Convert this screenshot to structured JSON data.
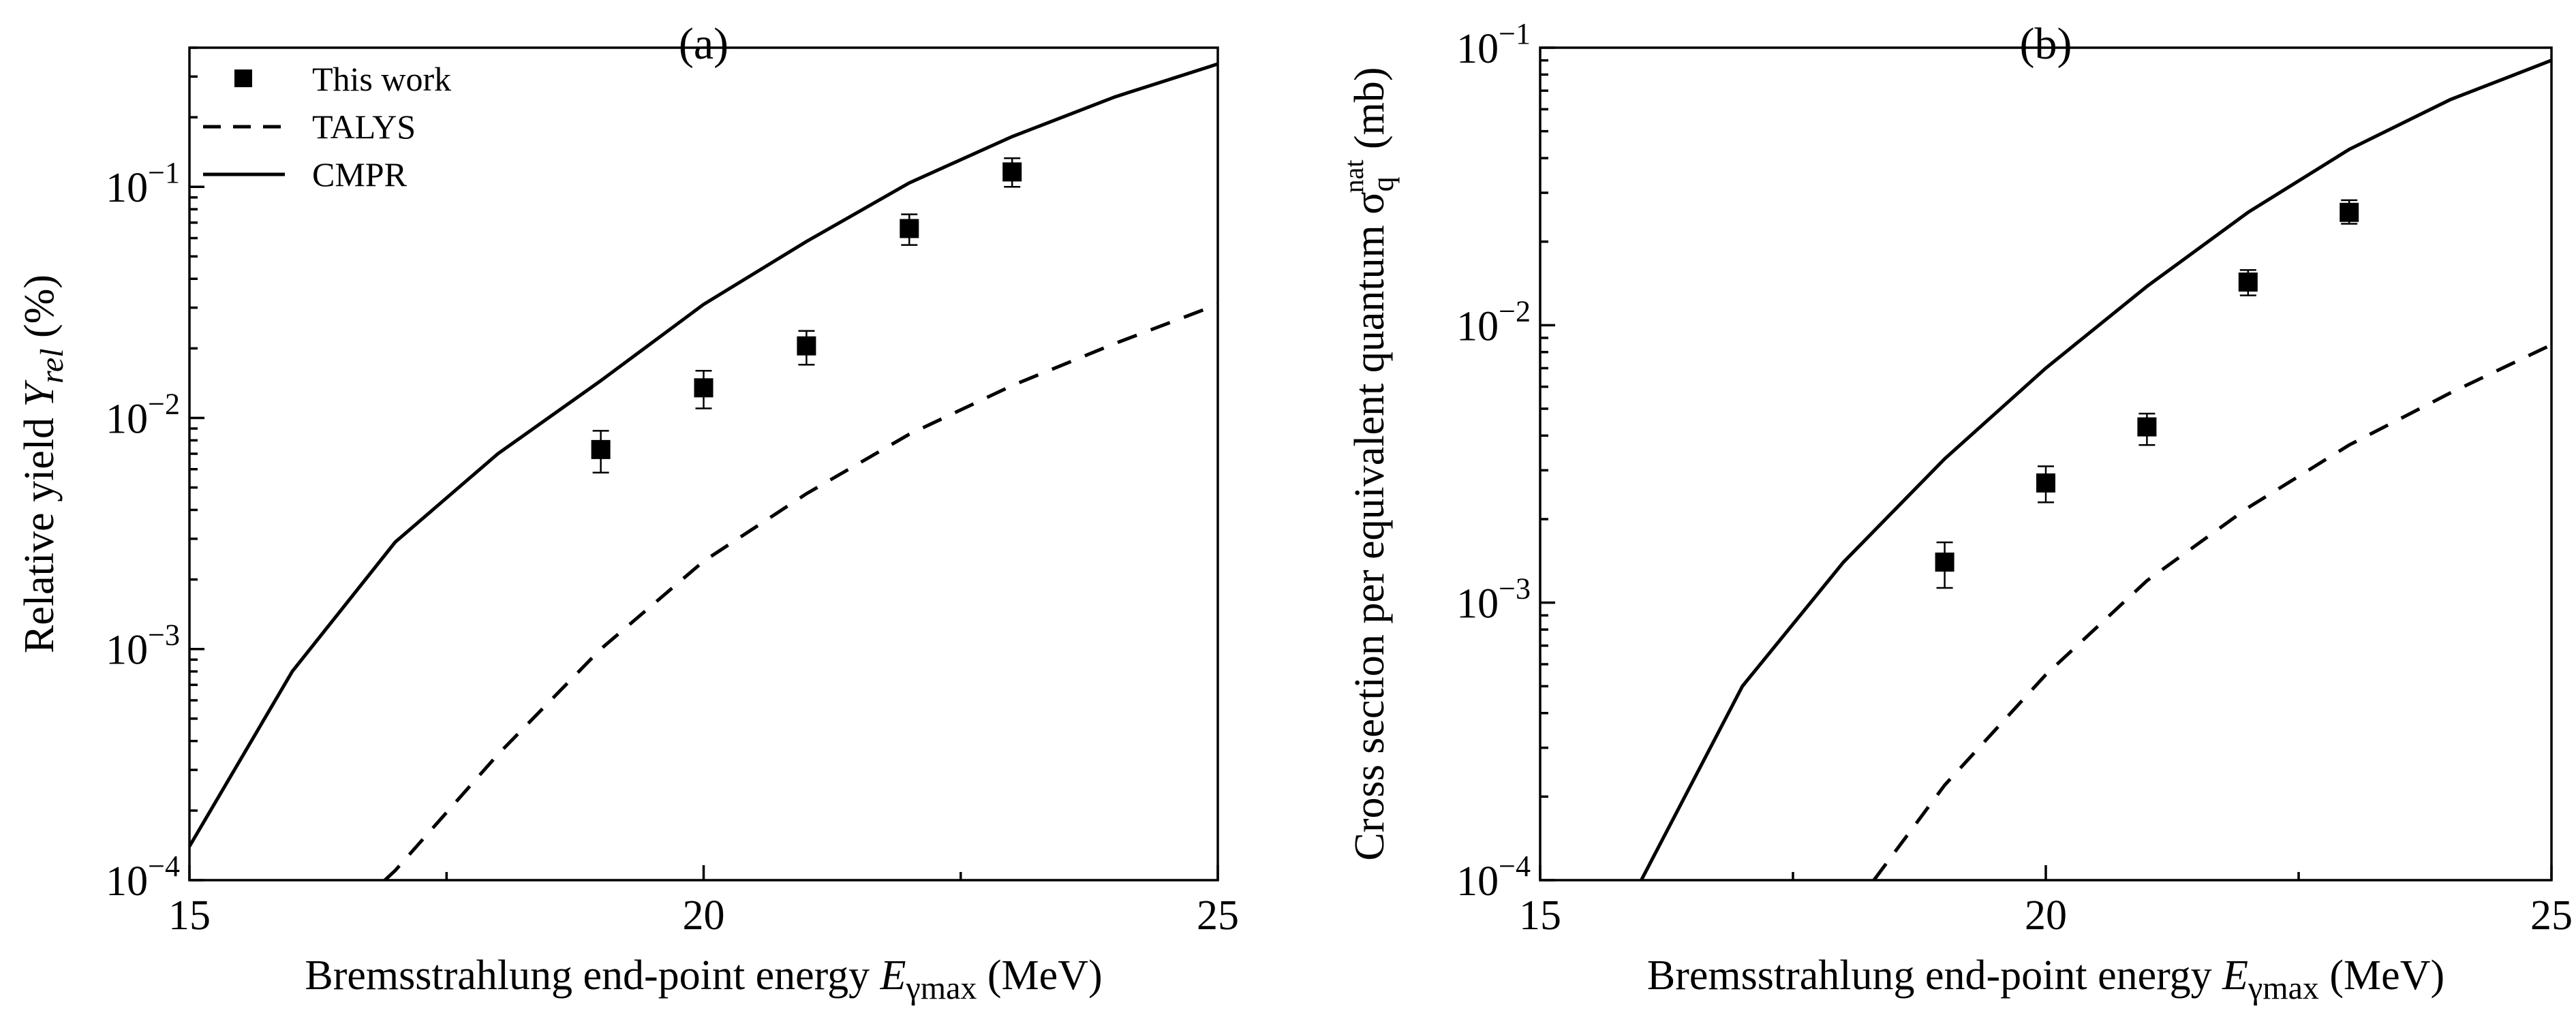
{
  "chart_data": [
    {
      "type": "line",
      "panel_label": "(a)",
      "xlabel_prefix": "Bremsstrahlung end-point energy ",
      "xlabel_symbol": "E",
      "xlabel_subscript": "γmax",
      "xlabel_suffix": " (MeV)",
      "ylabel_prefix": "Relative yield ",
      "ylabel_symbol": "Y",
      "ylabel_subscript": "rel",
      "ylabel_suffix": " (%)",
      "xlim": [
        15,
        25
      ],
      "ylim": [
        0.0001,
        0.4
      ],
      "yscale": "log",
      "x_ticks": [
        15,
        20,
        25
      ],
      "y_ticks": [
        {
          "value": 0.0001,
          "mantissa": "10",
          "exp": "−4"
        },
        {
          "value": 0.001,
          "mantissa": "10",
          "exp": "−3"
        },
        {
          "value": 0.01,
          "mantissa": "10",
          "exp": "−2"
        },
        {
          "value": 0.1,
          "mantissa": "10",
          "exp": "−1"
        }
      ],
      "legend": {
        "placement": "top-left",
        "entries": [
          {
            "label": "This work",
            "style": "square-marker"
          },
          {
            "label": "TALYS",
            "style": "dashed-line"
          },
          {
            "label": "CMPR",
            "style": "solid-line"
          }
        ]
      },
      "series": [
        {
          "name": "This work",
          "style": "markers",
          "points": [
            {
              "x": 19,
              "y": 0.0073,
              "err_low": 0.0058,
              "err_high": 0.0088
            },
            {
              "x": 20,
              "y": 0.0135,
              "err_low": 0.011,
              "err_high": 0.016
            },
            {
              "x": 21,
              "y": 0.0205,
              "err_low": 0.017,
              "err_high": 0.0238
            },
            {
              "x": 22,
              "y": 0.066,
              "err_low": 0.056,
              "err_high": 0.076
            },
            {
              "x": 23,
              "y": 0.116,
              "err_low": 0.1,
              "err_high": 0.133
            }
          ]
        },
        {
          "name": "TALYS",
          "style": "dashed",
          "x": [
            16.9,
            17,
            18,
            19,
            20,
            21,
            22,
            23,
            24,
            25
          ],
          "y": [
            0.0001,
            0.00011,
            0.00035,
            0.001,
            0.0024,
            0.0047,
            0.0085,
            0.0138,
            0.021,
            0.031
          ]
        },
        {
          "name": "CMPR",
          "style": "solid",
          "x": [
            15,
            16,
            17,
            18,
            19,
            20,
            21,
            22,
            23,
            24,
            25
          ],
          "y": [
            0.00014,
            0.0008,
            0.0029,
            0.007,
            0.0145,
            0.031,
            0.058,
            0.104,
            0.165,
            0.245,
            0.34
          ]
        }
      ]
    },
    {
      "type": "line",
      "panel_label": "(b)",
      "xlabel_prefix": "Bremsstrahlung end-point energy ",
      "xlabel_symbol": "E",
      "xlabel_subscript": "γmax",
      "xlabel_suffix": " (MeV)",
      "ylabel_prefix": "Cross section per equivalent quantum σ",
      "ylabel_sub": "q",
      "ylabel_sup": "nat",
      "ylabel_suffix": " (mb)",
      "xlim": [
        15,
        25
      ],
      "ylim": [
        0.0001,
        0.1
      ],
      "yscale": "log",
      "x_ticks": [
        15,
        20,
        25
      ],
      "y_ticks": [
        {
          "value": 0.0001,
          "mantissa": "10",
          "exp": "−4"
        },
        {
          "value": 0.001,
          "mantissa": "10",
          "exp": "−3"
        },
        {
          "value": 0.01,
          "mantissa": "10",
          "exp": "−2"
        },
        {
          "value": 0.1,
          "mantissa": "10",
          "exp": "−1"
        }
      ],
      "series": [
        {
          "name": "This work",
          "style": "markers",
          "points": [
            {
              "x": 19,
              "y": 0.0014,
              "err_low": 0.00113,
              "err_high": 0.00165
            },
            {
              "x": 20,
              "y": 0.0027,
              "err_low": 0.0023,
              "err_high": 0.0031
            },
            {
              "x": 21,
              "y": 0.0043,
              "err_low": 0.0037,
              "err_high": 0.0048
            },
            {
              "x": 22,
              "y": 0.0143,
              "err_low": 0.0128,
              "err_high": 0.0158
            },
            {
              "x": 23,
              "y": 0.0255,
              "err_low": 0.0232,
              "err_high": 0.0282
            }
          ]
        },
        {
          "name": "TALYS",
          "style": "dashed",
          "x": [
            18.3,
            19,
            20,
            21,
            22,
            23,
            24,
            25
          ],
          "y": [
            0.0001,
            0.00022,
            0.00055,
            0.0012,
            0.0022,
            0.0037,
            0.0057,
            0.0085
          ]
        },
        {
          "name": "CMPR",
          "style": "solid",
          "x": [
            16,
            17,
            18,
            19,
            20,
            21,
            22,
            23,
            24,
            25
          ],
          "y": [
            0.0001,
            0.0005,
            0.0014,
            0.0033,
            0.007,
            0.0138,
            0.0255,
            0.043,
            0.065,
            0.09
          ]
        }
      ]
    }
  ]
}
